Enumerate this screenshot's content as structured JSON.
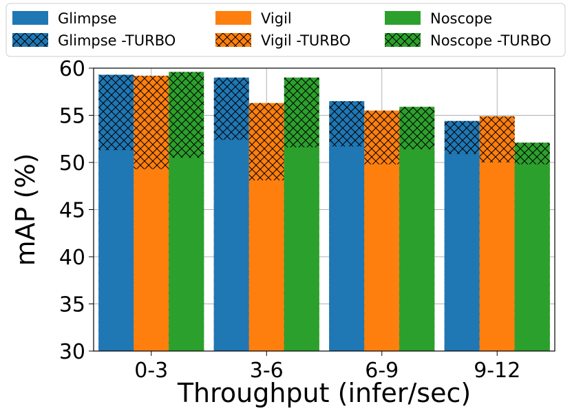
{
  "chart_data": {
    "type": "bar",
    "title": "",
    "xlabel": "Throughput (infer/sec)",
    "ylabel": "mAP (%)",
    "ylim": [
      30,
      60
    ],
    "yticks": [
      30,
      35,
      40,
      45,
      50,
      55,
      60
    ],
    "grid": true,
    "legend_position": "top",
    "categories": [
      "0-3",
      "3-6",
      "6-9",
      "9-12"
    ],
    "series": [
      {
        "name": "Glimpse",
        "color": "#1f77b4",
        "values": [
          51.3,
          52.4,
          51.7,
          50.9
        ]
      },
      {
        "name": "Vigil",
        "color": "#ff7f0e",
        "values": [
          49.3,
          48.1,
          49.8,
          50.0
        ]
      },
      {
        "name": "Noscope",
        "color": "#2ca02c",
        "values": [
          50.5,
          51.6,
          51.4,
          49.8
        ]
      },
      {
        "name": "Glimpse -TURBO",
        "color": "#1f77b4",
        "hatch": "crosshatch",
        "values": [
          59.3,
          59.0,
          56.5,
          54.4
        ]
      },
      {
        "name": "Vigil -TURBO",
        "color": "#ff7f0e",
        "hatch": "crosshatch",
        "values": [
          59.2,
          56.3,
          55.5,
          54.9
        ]
      },
      {
        "name": "Noscope -TURBO",
        "color": "#2ca02c",
        "hatch": "crosshatch",
        "values": [
          59.6,
          59.0,
          55.9,
          52.1
        ]
      }
    ]
  }
}
